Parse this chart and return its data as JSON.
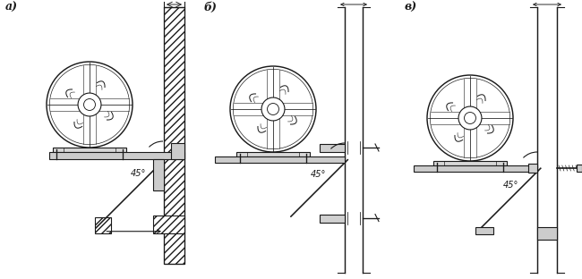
{
  "bg_color": "#ffffff",
  "line_color": "#1a1a1a",
  "labels": [
    "а)",
    "б)",
    "в)"
  ],
  "angle_label": "45°",
  "fig_width": 6.5,
  "fig_height": 3.12,
  "dpi": 100,
  "fan_r": 48,
  "lw": 0.8
}
